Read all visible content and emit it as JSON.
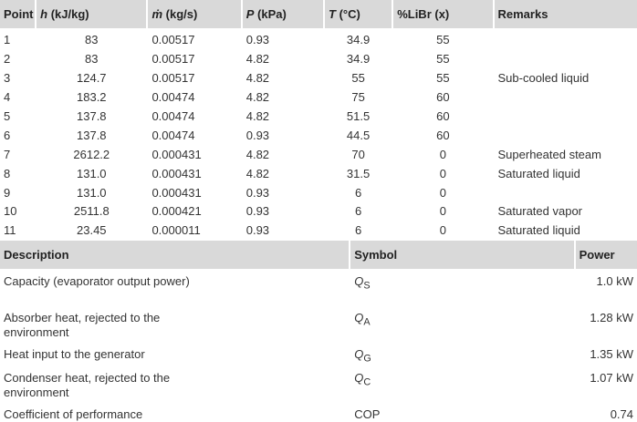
{
  "table1": {
    "headers": [
      "Point",
      {
        "symbol": "h",
        "unit": "(kJ/kg)"
      },
      {
        "symbol": "ṁ",
        "unit": "(kg/s)"
      },
      {
        "symbol": "P",
        "unit": "(kPa)"
      },
      {
        "symbol": "T",
        "unit": "(°C)"
      },
      "%LiBr (x)",
      "Remarks"
    ],
    "rows": [
      [
        "1",
        "83",
        "0.00517",
        "0.93",
        "34.9",
        "55",
        null
      ],
      [
        "2",
        "83",
        "0.00517",
        "4.82",
        "34.9",
        "55",
        null
      ],
      [
        "3",
        "124.7",
        "0.00517",
        "4.82",
        "55",
        "55",
        "Sub-cooled liquid"
      ],
      [
        "4",
        "183.2",
        "0.00474",
        "4.82",
        "75",
        "60",
        null
      ],
      [
        "5",
        "137.8",
        "0.00474",
        "4.82",
        "51.5",
        "60",
        null
      ],
      [
        "6",
        "137.8",
        "0.00474",
        "0.93",
        "44.5",
        "60",
        null
      ],
      [
        "7",
        "2612.2",
        "0.000431",
        "4.82",
        "70",
        "0",
        "Superheated steam"
      ],
      [
        "8",
        "131.0",
        "0.000431",
        "4.82",
        "31.5",
        "0",
        "Saturated liquid"
      ],
      [
        "9",
        "131.0",
        "0.000431",
        "0.93",
        "6",
        "0",
        null
      ],
      [
        "10",
        "2511.8",
        "0.000421",
        "0.93",
        "6",
        "0",
        "Saturated vapor"
      ],
      [
        "11",
        "23.45",
        "0.000011",
        "0.93",
        "6",
        "0",
        "Saturated liquid"
      ]
    ]
  },
  "table2": {
    "headers": [
      "Description",
      "Symbol",
      "Power"
    ],
    "rows": [
      [
        "Capacity (evaporator output power)",
        {
          "base": "Q",
          "sub": "S"
        },
        "1.0 kW"
      ],
      [
        "Absorber heat, rejected to the environment",
        {
          "base": "Q",
          "sub": "A"
        },
        "1.28 kW"
      ],
      [
        "Heat input to the generator",
        {
          "base": "Q",
          "sub": "G"
        },
        "1.35 kW"
      ],
      [
        "Condenser heat, rejected to the environment",
        {
          "base": "Q",
          "sub": "C"
        },
        "1.07 kW"
      ],
      [
        "Coefficient of performance",
        "COP",
        "0.74"
      ]
    ]
  }
}
